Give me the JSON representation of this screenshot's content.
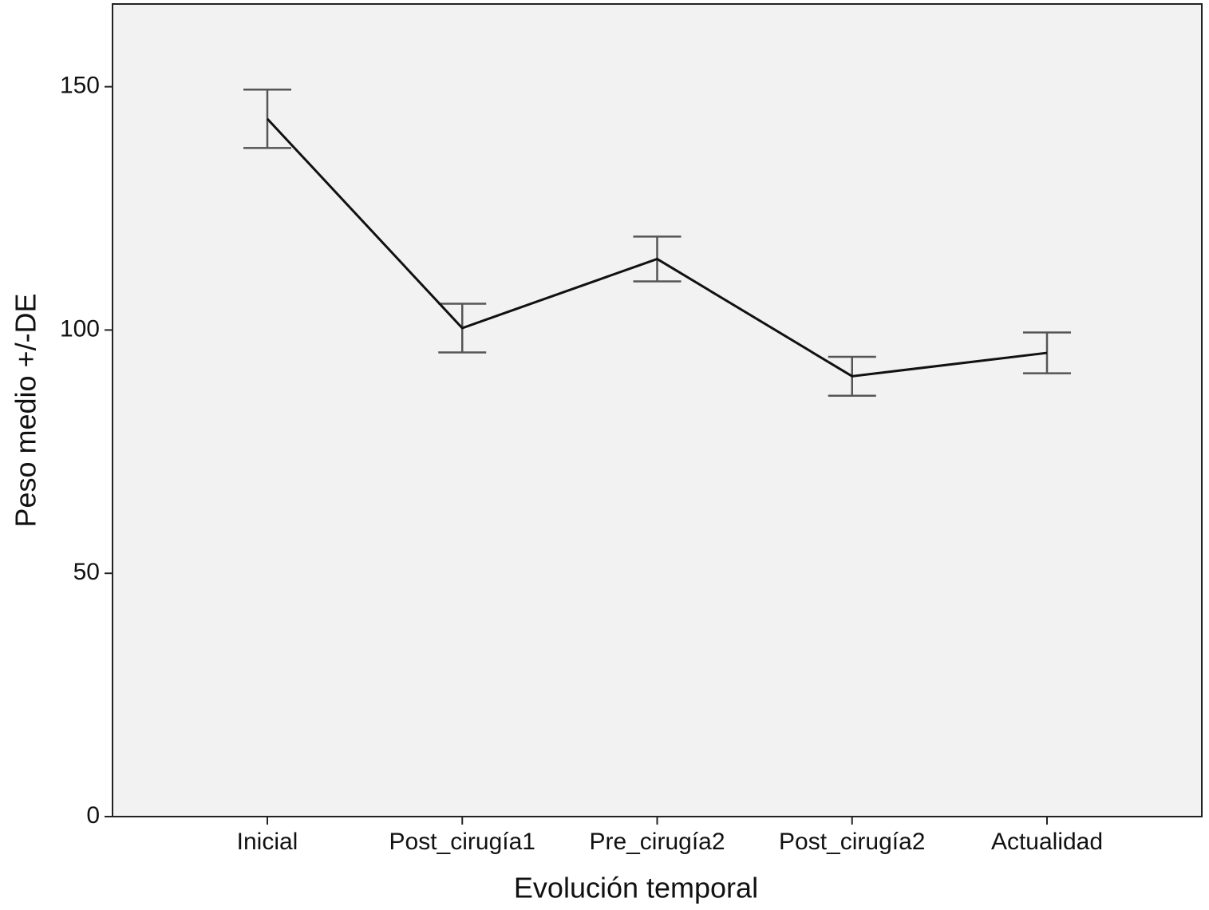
{
  "chart_data": {
    "type": "line",
    "x_label": "Evolución temporal",
    "y_label": "Peso medio +/-DE",
    "categories": [
      "Inicial",
      "Post_cirugía1",
      "Pre_cirugía2",
      "Post_cirugía2",
      "Actualidad"
    ],
    "series": [
      {
        "name": "Peso medio",
        "color": "#111111",
        "values": [
          143.4,
          100.4,
          114.6,
          90.5,
          95.3
        ],
        "errors": [
          6.0,
          5.0,
          4.6,
          4.0,
          4.2
        ]
      }
    ],
    "ylim": [
      0,
      167
    ],
    "yticks": [
      0,
      50,
      100,
      150
    ],
    "background": "#f2f2f2",
    "grid": false
  }
}
